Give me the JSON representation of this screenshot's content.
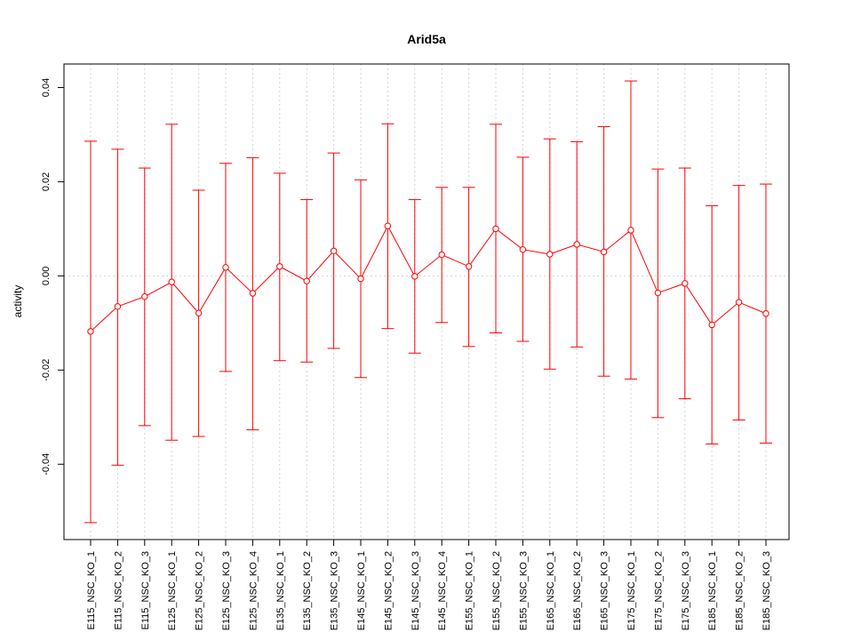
{
  "chart_data": {
    "type": "line",
    "title": "Arid5a",
    "xlabel": "",
    "ylabel": "activity",
    "ylim": [
      -0.056,
      0.045
    ],
    "yticks": [
      -0.04,
      -0.02,
      0.0,
      0.02,
      0.04
    ],
    "ytick_labels": [
      "-0.04",
      "-0.02",
      "0.00",
      "0.02",
      "0.04"
    ],
    "grid": true,
    "categories": [
      "E115_NSC_KO_1",
      "E115_NSC_KO_2",
      "E115_NSC_KO_3",
      "E125_NSC_KO_1",
      "E125_NSC_KO_2",
      "E125_NSC_KO_3",
      "E125_NSC_KO_4",
      "E135_NSC_KO_1",
      "E135_NSC_KO_2",
      "E135_NSC_KO_3",
      "E145_NSC_KO_1",
      "E145_NSC_KO_2",
      "E145_NSC_KO_3",
      "E145_NSC_KO_4",
      "E155_NSC_KO_1",
      "E155_NSC_KO_2",
      "E155_NSC_KO_3",
      "E165_NSC_KO_1",
      "E165_NSC_KO_2",
      "E165_NSC_KO_3",
      "E175_NSC_KO_1",
      "E175_NSC_KO_2",
      "E175_NSC_KO_3",
      "E185_NSC_KO_1",
      "E185_NSC_KO_2",
      "E185_NSC_KO_3"
    ],
    "values": [
      -0.0118,
      -0.0065,
      -0.0044,
      -0.0013,
      -0.0079,
      0.0018,
      -0.0037,
      0.002,
      -0.0011,
      0.0053,
      -0.0006,
      0.0106,
      -0.0001,
      0.0045,
      0.002,
      0.01,
      0.0056,
      0.0046,
      0.0067,
      0.0051,
      0.0097,
      -0.0036,
      -0.0016,
      -0.0104,
      -0.0056,
      -0.008
    ],
    "upper": [
      0.0286,
      0.0269,
      0.0229,
      0.0322,
      0.0182,
      0.0239,
      0.0251,
      0.0218,
      0.0162,
      0.0261,
      0.0204,
      0.0323,
      0.0162,
      0.0188,
      0.0188,
      0.0322,
      0.0252,
      0.0291,
      0.0285,
      0.0317,
      0.0414,
      0.0227,
      0.0229,
      0.0149,
      0.0192,
      0.0195
    ],
    "lower": [
      -0.0524,
      -0.0402,
      -0.0318,
      -0.0349,
      -0.0341,
      -0.0203,
      -0.0327,
      -0.018,
      -0.0183,
      -0.0154,
      -0.0216,
      -0.0112,
      -0.0164,
      -0.0099,
      -0.015,
      -0.0121,
      -0.0139,
      -0.0198,
      -0.0151,
      -0.0213,
      -0.0219,
      -0.0301,
      -0.0261,
      -0.0357,
      -0.0306,
      -0.0355
    ],
    "color": "#FF0000",
    "grid_color": "#D3D3D3"
  }
}
